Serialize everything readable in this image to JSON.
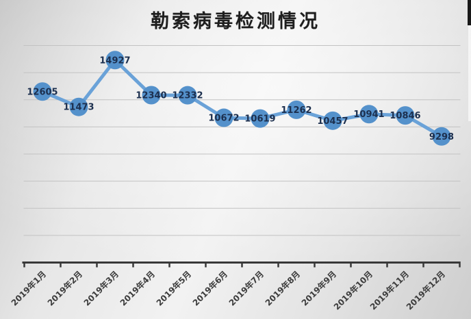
{
  "chart_data": {
    "type": "line",
    "title": "勒索病毒检测情况",
    "categories": [
      "2019年1月",
      "2019年2月",
      "2019年3月",
      "2019年4月",
      "2019年5月",
      "2019年6月",
      "2019年7月",
      "2019年8月",
      "2019年9月",
      "2019年10月",
      "2019年11月",
      "2019年12月"
    ],
    "values": [
      12605,
      11473,
      14927,
      12340,
      12332,
      10672,
      10619,
      11262,
      10457,
      10941,
      10846,
      9298
    ],
    "xlabel": "",
    "ylabel": "",
    "ylim": [
      0,
      16000
    ],
    "gridline_interval": 2000,
    "grid": true,
    "legend": "none",
    "data_label_position": "center",
    "x_label_rotation": -45,
    "colors": {
      "line": "#6aa2d8",
      "marker": "#5491cb",
      "data_label": "#1c2f4e",
      "axis": "#383838",
      "gridline": "#c2c2c2",
      "title": "#1e1e1e",
      "x_label": "#3d3d3d"
    }
  }
}
